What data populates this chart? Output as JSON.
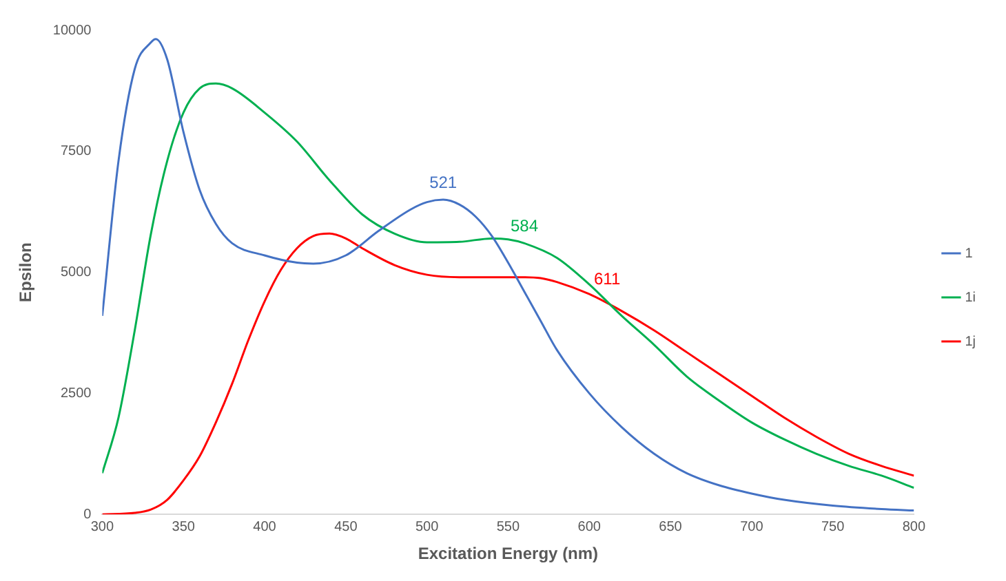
{
  "chart_data": {
    "type": "line",
    "xlabel": "Excitation Energy (nm)",
    "ylabel": "Epsilon",
    "xlim": [
      300,
      800
    ],
    "xticks": [
      300,
      350,
      400,
      450,
      500,
      550,
      600,
      650,
      700,
      750,
      800
    ],
    "ylim": [
      0,
      10000
    ],
    "yticks": [
      0,
      2500,
      5000,
      7500,
      10000
    ],
    "grid": false,
    "legend": "right",
    "marker": "none",
    "line_style": "solid",
    "series": [
      {
        "name": "1",
        "color": "#4472c4",
        "x": [
          300,
          310,
          320,
          330,
          333,
          340,
          350,
          360,
          370,
          380,
          400,
          420,
          430,
          450,
          470,
          490,
          500,
          510,
          520,
          530,
          540,
          550,
          560,
          570,
          580,
          600,
          620,
          640,
          660,
          680,
          700,
          720,
          750,
          780,
          800
        ],
        "values": [
          4100,
          7300,
          9200,
          9750,
          9820,
          9400,
          7900,
          6700,
          6000,
          5600,
          5350,
          5200,
          5180,
          5350,
          5850,
          6300,
          6450,
          6500,
          6400,
          6150,
          5750,
          5200,
          4600,
          4000,
          3400,
          2500,
          1800,
          1250,
          850,
          600,
          430,
          300,
          180,
          110,
          80
        ]
      },
      {
        "name": "1i",
        "color": "#00b050",
        "x": [
          300,
          310,
          320,
          330,
          340,
          350,
          360,
          370,
          380,
          400,
          420,
          440,
          460,
          480,
          500,
          520,
          540,
          550,
          560,
          580,
          600,
          620,
          640,
          660,
          680,
          700,
          720,
          740,
          760,
          780,
          800
        ],
        "values": [
          850,
          2000,
          3800,
          5800,
          7300,
          8300,
          8800,
          8900,
          8800,
          8300,
          7700,
          6900,
          6200,
          5800,
          5620,
          5630,
          5700,
          5680,
          5600,
          5300,
          4750,
          4100,
          3500,
          2850,
          2350,
          1900,
          1550,
          1250,
          1000,
          800,
          550
        ]
      },
      {
        "name": "1j",
        "color": "#ff0000",
        "x": [
          300,
          320,
          330,
          340,
          350,
          360,
          370,
          380,
          390,
          400,
          410,
          420,
          430,
          440,
          450,
          460,
          480,
          500,
          520,
          540,
          560,
          570,
          580,
          600,
          620,
          640,
          660,
          680,
          700,
          720,
          740,
          760,
          780,
          800
        ],
        "values": [
          0,
          30,
          100,
          300,
          700,
          1200,
          1900,
          2700,
          3600,
          4400,
          5050,
          5500,
          5750,
          5800,
          5700,
          5500,
          5150,
          4950,
          4900,
          4900,
          4900,
          4880,
          4800,
          4550,
          4200,
          3800,
          3350,
          2900,
          2450,
          2000,
          1600,
          1250,
          1000,
          800
        ]
      }
    ],
    "annotations": [
      {
        "text": "521",
        "x": 510,
        "y": 6500
      },
      {
        "text": "584",
        "x": 560,
        "y": 5600
      },
      {
        "text": "611",
        "x": 611,
        "y": 4500
      }
    ]
  }
}
